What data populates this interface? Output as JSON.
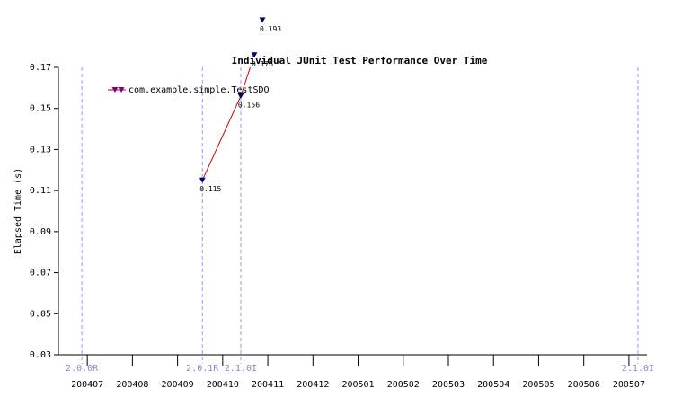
{
  "chart_data": {
    "type": "line",
    "title": "Individual JUnit Test Performance Over Time",
    "y_label": "Elapsed Time (s)",
    "xlim": [
      -0.64,
      12.4
    ],
    "ylim": [
      0.03,
      0.17
    ],
    "yticks": [
      0.03,
      0.05,
      0.07,
      0.09,
      0.11,
      0.13,
      0.15,
      0.17
    ],
    "xticks": [
      {
        "value": 0,
        "label": "200407"
      },
      {
        "value": 1,
        "label": "200408"
      },
      {
        "value": 2,
        "label": "200409"
      },
      {
        "value": 3,
        "label": "200410"
      },
      {
        "value": 4,
        "label": "200411"
      },
      {
        "value": 5,
        "label": "200412"
      },
      {
        "value": 6,
        "label": "200501"
      },
      {
        "value": 7,
        "label": "200502"
      },
      {
        "value": 8,
        "label": "200503"
      },
      {
        "value": 9,
        "label": "200504"
      },
      {
        "value": 10,
        "label": "200505"
      },
      {
        "value": 11,
        "label": "200506"
      },
      {
        "value": 12,
        "label": "200507"
      }
    ],
    "versions": [
      {
        "x": -0.12,
        "label": "2.0.0R"
      },
      {
        "x": 2.55,
        "label": "2.0.1R"
      },
      {
        "x": 3.4,
        "label": "2.1.0I"
      },
      {
        "x": 12.2,
        "label": "2.1.0I"
      }
    ],
    "series": [
      {
        "name": "com.example.simple.TestSDO",
        "color": "#cc0000",
        "marker_color": "#000080",
        "x": [
          2.55,
          3.4,
          3.7,
          3.88
        ],
        "values": [
          0.115,
          0.156,
          0.176,
          0.193
        ]
      }
    ]
  }
}
